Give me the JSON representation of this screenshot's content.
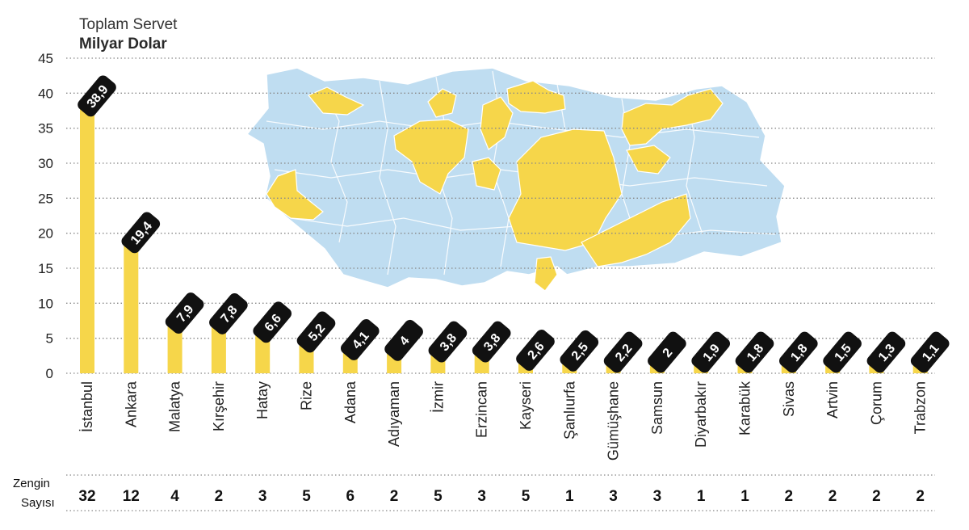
{
  "header": {
    "title": "Toplam Servet",
    "unit": "Milyar Dolar"
  },
  "footer": {
    "count_label_line1": "Zengin",
    "count_label_line2": "Sayısı"
  },
  "colors": {
    "bar": "#F6D64A",
    "label_bg": "#111111",
    "label_text": "#ffffff",
    "map_blue": "#BFDDF1",
    "map_yellow": "#F6D64A",
    "grid": "#888888"
  },
  "chart_data": {
    "type": "bar",
    "title": "Toplam Servet",
    "ylabel": "Milyar Dolar",
    "ylim": [
      0,
      45
    ],
    "yticks": [
      0,
      5,
      10,
      15,
      20,
      25,
      30,
      35,
      40,
      45
    ],
    "grid": true,
    "categories": [
      "İstanbul",
      "Ankara",
      "Malatya",
      "Kırşehir",
      "Hatay",
      "Rize",
      "Adana",
      "Adıyaman",
      "İzmir",
      "Erzincan",
      "Kayseri",
      "Şanlıurfa",
      "Gümüşhane",
      "Samsun",
      "Diyarbakır",
      "Karabük",
      "Sivas",
      "Artvin",
      "Çorum",
      "Trabzon"
    ],
    "values": [
      38.9,
      19.4,
      7.9,
      7.8,
      6.6,
      5.2,
      4.1,
      4,
      3.8,
      3.8,
      2.6,
      2.5,
      2.2,
      2,
      1.9,
      1.8,
      1.8,
      1.5,
      1.3,
      1.1
    ],
    "value_labels": [
      "38,9",
      "19,4",
      "7,9",
      "7,8",
      "6,6",
      "5,2",
      "4,1",
      "4",
      "3,8",
      "3,8",
      "2,6",
      "2,5",
      "2,2",
      "2",
      "1,9",
      "1,8",
      "1,8",
      "1,5",
      "1,3",
      "1,1"
    ],
    "counts": [
      32,
      12,
      4,
      2,
      3,
      5,
      6,
      2,
      5,
      3,
      5,
      1,
      3,
      3,
      1,
      1,
      2,
      2,
      2,
      2
    ]
  }
}
